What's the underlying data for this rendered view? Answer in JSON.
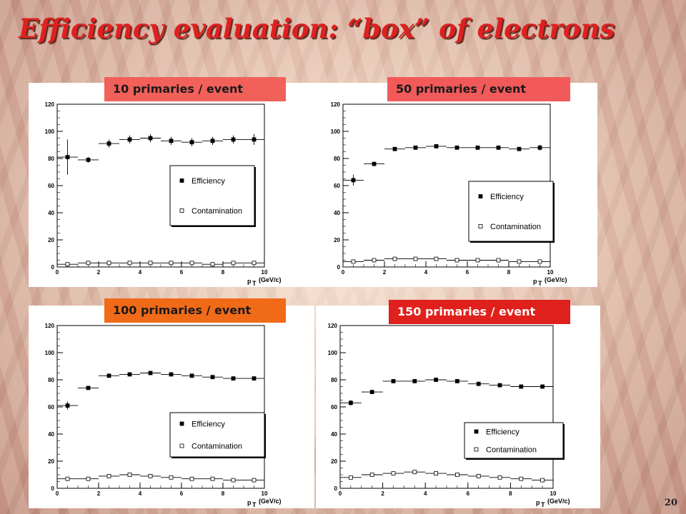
{
  "slide": {
    "title": "Efficiency evaluation: “box” of electrons",
    "page_number": "20",
    "label_colors": [
      "#f2605a",
      "#f25a5a",
      "#f06a18",
      "#e0201c"
    ],
    "label_text_colors": [
      "#1a1a1a",
      "#1a1a1a",
      "#1a1a1a",
      "#ffffff"
    ]
  },
  "chart_data": [
    {
      "type": "scatter",
      "label": "10 primaries  / event",
      "xlabel": "p",
      "xlabel_sub": "T",
      "xlabel_unit": "(GeV/c)",
      "xlim": [
        0,
        10
      ],
      "ylim": [
        0,
        120
      ],
      "xticks": [
        "0",
        "2",
        "4",
        "6",
        "8",
        "10"
      ],
      "yticks": [
        "0",
        "20",
        "40",
        "60",
        "80",
        "100",
        "120"
      ],
      "legend": [
        "Efficiency",
        "Contamination"
      ],
      "x": [
        0.5,
        1.5,
        2.5,
        3.5,
        4.5,
        5.5,
        6.5,
        7.5,
        8.5,
        9.5
      ],
      "series": [
        {
          "name": "Efficiency",
          "marker": "filled-square",
          "values": [
            81,
            79,
            91,
            94,
            95,
            93,
            92,
            93,
            94,
            94
          ],
          "errors": [
            13,
            2,
            3,
            3,
            3,
            3,
            3,
            3,
            3,
            4
          ]
        },
        {
          "name": "Contamination",
          "marker": "open-square",
          "values": [
            2,
            3,
            3,
            3,
            3,
            3,
            3,
            2,
            3,
            3
          ],
          "errors": [
            1,
            1,
            1,
            1,
            1,
            1,
            1,
            1,
            1,
            1
          ]
        }
      ]
    },
    {
      "type": "scatter",
      "label": "50 primaries  / event",
      "xlabel": "p",
      "xlabel_sub": "T",
      "xlabel_unit": "(GeV/c)",
      "xlim": [
        0,
        10
      ],
      "ylim": [
        0,
        120
      ],
      "xticks": [
        "0",
        "2",
        "4",
        "6",
        "8",
        "10"
      ],
      "yticks": [
        "0",
        "20",
        "40",
        "60",
        "80",
        "100",
        "120"
      ],
      "legend": [
        "Efficiency",
        "Contamination"
      ],
      "x": [
        0.5,
        1.5,
        2.5,
        3.5,
        4.5,
        5.5,
        6.5,
        7.5,
        8.5,
        9.5
      ],
      "series": [
        {
          "name": "Efficiency",
          "marker": "filled-square",
          "values": [
            64,
            76,
            87,
            88,
            89,
            88,
            88,
            88,
            87,
            88
          ],
          "errors": [
            4,
            1,
            1,
            1,
            1,
            1,
            1,
            1,
            1,
            2
          ]
        },
        {
          "name": "Contamination",
          "marker": "open-square",
          "values": [
            4,
            5,
            6,
            6,
            6,
            5,
            5,
            5,
            4,
            4
          ],
          "errors": [
            1,
            1,
            1,
            1,
            1,
            1,
            1,
            1,
            1,
            1
          ]
        }
      ]
    },
    {
      "type": "scatter",
      "label": "100 primaries  / event",
      "xlabel": "p",
      "xlabel_sub": "T",
      "xlabel_unit": "(GeV/c)",
      "xlim": [
        0,
        10
      ],
      "ylim": [
        0,
        120
      ],
      "xticks": [
        "0",
        "2",
        "4",
        "6",
        "8",
        "10"
      ],
      "yticks": [
        "0",
        "20",
        "40",
        "60",
        "80",
        "100",
        "120"
      ],
      "legend": [
        "Efficiency",
        "Contamination"
      ],
      "x": [
        0.5,
        1.5,
        2.5,
        3.5,
        4.5,
        5.5,
        6.5,
        7.5,
        8.5,
        9.5
      ],
      "series": [
        {
          "name": "Efficiency",
          "marker": "filled-square",
          "values": [
            61,
            74,
            83,
            84,
            85,
            84,
            83,
            82,
            81,
            81
          ],
          "errors": [
            3,
            1,
            1,
            1,
            1,
            1,
            1,
            1,
            1,
            1
          ]
        },
        {
          "name": "Contamination",
          "marker": "open-square",
          "values": [
            7,
            7,
            9,
            10,
            9,
            8,
            7,
            7,
            6,
            6
          ],
          "errors": [
            1,
            1,
            1,
            1,
            1,
            1,
            1,
            1,
            1,
            1
          ]
        }
      ]
    },
    {
      "type": "scatter",
      "label": "150 primaries  / event",
      "xlabel": "p",
      "xlabel_sub": "T",
      "xlabel_unit": "(GeV/c)",
      "xlim": [
        0,
        10
      ],
      "ylim": [
        0,
        120
      ],
      "xticks": [
        "0",
        "2",
        "4",
        "6",
        "8",
        "10"
      ],
      "yticks": [
        "0",
        "20",
        "40",
        "60",
        "80",
        "100",
        "120"
      ],
      "legend": [
        "Efficiency",
        "Contamination"
      ],
      "x": [
        0.5,
        1.5,
        2.5,
        3.5,
        4.5,
        5.5,
        6.5,
        7.5,
        8.5,
        9.5
      ],
      "series": [
        {
          "name": "Efficiency",
          "marker": "filled-square",
          "values": [
            63,
            71,
            79,
            79,
            80,
            79,
            77,
            76,
            75,
            75
          ],
          "errors": [
            2,
            1,
            1,
            1,
            1,
            1,
            1,
            1,
            1,
            1
          ]
        },
        {
          "name": "Contamination",
          "marker": "open-square",
          "values": [
            8,
            10,
            11,
            12,
            11,
            10,
            9,
            8,
            7,
            6
          ],
          "errors": [
            1,
            1,
            1,
            1,
            1,
            1,
            1,
            1,
            1,
            1
          ]
        }
      ]
    }
  ]
}
